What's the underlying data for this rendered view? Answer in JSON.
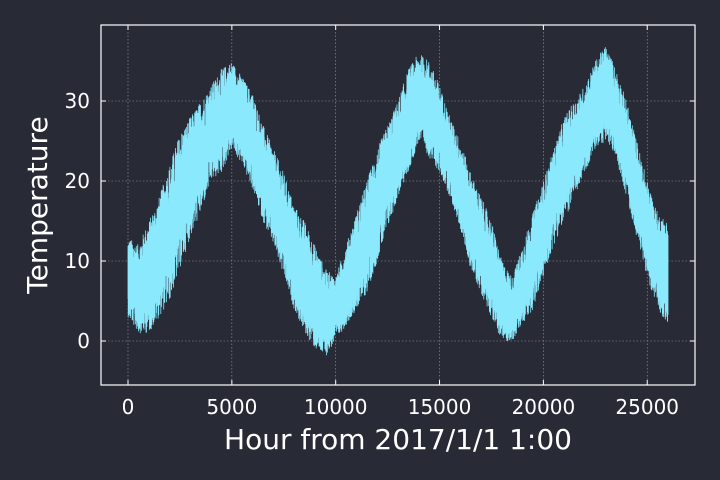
{
  "chart_data": {
    "type": "line",
    "title": "",
    "xlabel": "Hour from 2017/1/1 1:00",
    "ylabel": "Temperature",
    "xlim": [
      -1300,
      27300
    ],
    "ylim": [
      -5.5,
      39.5
    ],
    "xticks": [
      0,
      5000,
      10000,
      15000,
      20000,
      25000
    ],
    "yticks": [
      0,
      10,
      20,
      30
    ],
    "grid": true,
    "legend": "none",
    "colors": {
      "background": "#282a36",
      "axes": "#ffffff",
      "grid": "#9a9aa6",
      "series": "#8be9fd"
    },
    "series": [
      {
        "name": "",
        "x": [
          0,
          500,
          1000,
          1500,
          2000,
          2500,
          3000,
          3500,
          4000,
          4500,
          5000,
          5500,
          6000,
          6500,
          7000,
          7500,
          8000,
          8500,
          9000,
          9500,
          10000,
          10500,
          11000,
          11500,
          12000,
          12500,
          13000,
          13500,
          14000,
          14500,
          15000,
          15500,
          16000,
          16500,
          17000,
          17500,
          18000,
          18500,
          19000,
          19500,
          20000,
          20500,
          21000,
          21500,
          22000,
          22500,
          23000,
          23500,
          24000,
          24500,
          25000,
          25500,
          26000
        ],
        "min": [
          3,
          1,
          1,
          3,
          5,
          9,
          13,
          16,
          20,
          21,
          24,
          22,
          19,
          15,
          12,
          8,
          4,
          1,
          -1,
          -2,
          0,
          2,
          4,
          6,
          10,
          14,
          18,
          21,
          25,
          23,
          21,
          18,
          14,
          9,
          6,
          3,
          0,
          0,
          2,
          4,
          8,
          12,
          15,
          18,
          21,
          24,
          25,
          23,
          18,
          13,
          8,
          4,
          2
        ],
        "max": [
          13,
          12,
          15,
          18,
          22,
          26,
          28,
          30,
          32,
          34,
          35,
          33,
          31,
          27,
          24,
          21,
          17,
          15,
          12,
          9,
          8,
          12,
          16,
          20,
          24,
          27,
          30,
          34,
          36,
          35,
          32,
          28,
          25,
          21,
          18,
          15,
          10,
          8,
          12,
          16,
          20,
          24,
          28,
          30,
          32,
          35,
          37,
          34,
          30,
          25,
          20,
          16,
          15
        ]
      }
    ]
  }
}
